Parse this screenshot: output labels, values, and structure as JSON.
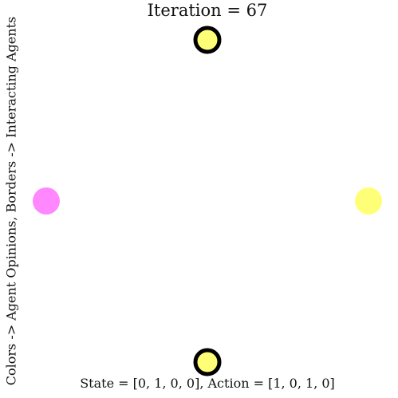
{
  "title": "Iteration = 67",
  "ylabel": "Colors -> Agent Opinions, Borders -> Interacting Agents",
  "xlabel": "State = [0, 1, 0, 0], Action = [1, 0, 1, 0]",
  "colors": {
    "yellow": "#ffff77",
    "magenta": "#ff88ff",
    "border": "#000000"
  },
  "agents": [
    {
      "id": "agent-top",
      "opinion_color": "yellow",
      "interacting": true
    },
    {
      "id": "agent-left",
      "opinion_color": "magenta",
      "interacting": false
    },
    {
      "id": "agent-right",
      "opinion_color": "yellow",
      "interacting": false
    },
    {
      "id": "agent-bottom",
      "opinion_color": "yellow",
      "interacting": true
    }
  ]
}
